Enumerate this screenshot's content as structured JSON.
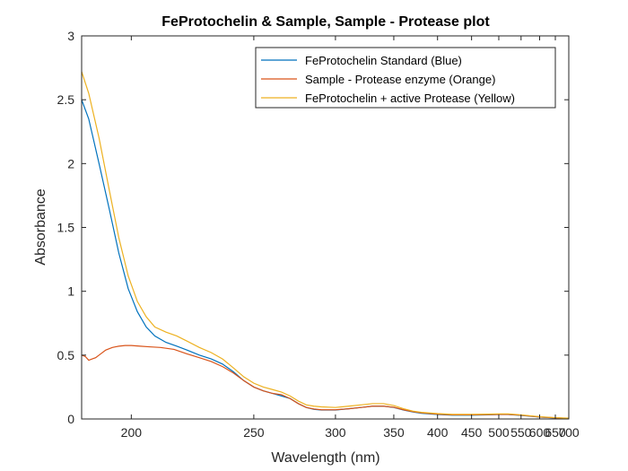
{
  "chart_data": {
    "type": "line",
    "title": "FeProtochelin & Sample, Sample - Protease plot",
    "xlabel": "Wavelength (nm)",
    "ylabel": "Absorbance",
    "x_scale": "reciprocal",
    "xlim": [
      185,
      700
    ],
    "ylim": [
      0,
      3
    ],
    "x_ticks": [
      200,
      250,
      300,
      350,
      400,
      450,
      500,
      550,
      600,
      650,
      700
    ],
    "y_ticks": [
      0,
      0.5,
      1,
      1.5,
      2,
      2.5,
      3
    ],
    "x_tick_labels": [
      "200",
      "250",
      "300",
      "350",
      "400",
      "450",
      "500",
      "550",
      "600",
      "650",
      "700"
    ],
    "y_tick_labels": [
      "0",
      "0.5",
      "1",
      "1.5",
      "2",
      "2.5",
      "3"
    ],
    "grid": false,
    "legend_position": "top-right",
    "series": [
      {
        "name": "FeProtochelin Standard (Blue)",
        "color": "#0072BD",
        "x": [
          185,
          187,
          190,
          193,
          196,
          199,
          202,
          205,
          208,
          212,
          216,
          220,
          225,
          230,
          235,
          240,
          245,
          250,
          255,
          260,
          265,
          270,
          275,
          280,
          285,
          290,
          300,
          310,
          320,
          330,
          340,
          350,
          360,
          370,
          380,
          400,
          420,
          450,
          480,
          500,
          520,
          550,
          600,
          650,
          700
        ],
        "y": [
          2.5,
          2.35,
          2.0,
          1.65,
          1.3,
          1.02,
          0.84,
          0.72,
          0.65,
          0.6,
          0.57,
          0.54,
          0.5,
          0.47,
          0.43,
          0.37,
          0.3,
          0.25,
          0.22,
          0.2,
          0.18,
          0.16,
          0.12,
          0.09,
          0.075,
          0.07,
          0.07,
          0.08,
          0.09,
          0.1,
          0.1,
          0.09,
          0.07,
          0.055,
          0.045,
          0.035,
          0.03,
          0.03,
          0.032,
          0.035,
          0.035,
          0.028,
          0.015,
          0.008,
          0.005
        ]
      },
      {
        "name": "Sample - Protease enzyme (Orange)",
        "color": "#D95319",
        "x": [
          185,
          186,
          187,
          188,
          189,
          190,
          192,
          194,
          196,
          198,
          200,
          203,
          206,
          210,
          215,
          220,
          225,
          230,
          235,
          240,
          245,
          250,
          255,
          260,
          265,
          270,
          275,
          280,
          285,
          290,
          300,
          310,
          320,
          330,
          340,
          350,
          360,
          370,
          380,
          400,
          420,
          450,
          480,
          500,
          520,
          550,
          600,
          650,
          700
        ],
        "y": [
          0.5,
          0.49,
          0.46,
          0.47,
          0.48,
          0.5,
          0.54,
          0.56,
          0.57,
          0.575,
          0.575,
          0.57,
          0.565,
          0.56,
          0.545,
          0.51,
          0.48,
          0.45,
          0.41,
          0.36,
          0.3,
          0.25,
          0.22,
          0.2,
          0.19,
          0.16,
          0.12,
          0.09,
          0.078,
          0.072,
          0.072,
          0.08,
          0.09,
          0.1,
          0.1,
          0.092,
          0.072,
          0.058,
          0.048,
          0.038,
          0.032,
          0.032,
          0.034,
          0.036,
          0.036,
          0.03,
          0.016,
          0.009,
          0.005
        ]
      },
      {
        "name": "FeProtochelin + active Protease (Yellow)",
        "color": "#EDB120",
        "x": [
          185,
          187,
          190,
          193,
          196,
          199,
          202,
          205,
          208,
          212,
          216,
          220,
          225,
          230,
          235,
          240,
          245,
          250,
          255,
          260,
          265,
          270,
          275,
          280,
          285,
          290,
          300,
          310,
          320,
          330,
          340,
          350,
          360,
          370,
          380,
          400,
          420,
          450,
          480,
          500,
          520,
          550,
          600,
          650,
          700
        ],
        "y": [
          2.72,
          2.55,
          2.2,
          1.8,
          1.42,
          1.12,
          0.92,
          0.8,
          0.72,
          0.68,
          0.65,
          0.61,
          0.56,
          0.52,
          0.47,
          0.4,
          0.33,
          0.28,
          0.25,
          0.23,
          0.21,
          0.18,
          0.14,
          0.11,
          0.1,
          0.095,
          0.09,
          0.1,
          0.11,
          0.12,
          0.12,
          0.105,
          0.08,
          0.062,
          0.052,
          0.042,
          0.036,
          0.036,
          0.038,
          0.04,
          0.04,
          0.032,
          0.018,
          0.01,
          0.006
        ]
      }
    ]
  }
}
